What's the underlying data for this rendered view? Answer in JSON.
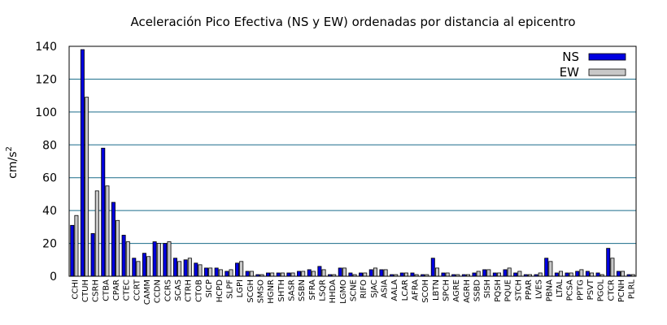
{
  "chart_data": {
    "type": "bar",
    "title": "Aceleración Pico Efectiva (NS y EW) ordenadas por distancia al epicentro",
    "xlabel": "",
    "ylabel": "cm/s",
    "ylabel_superscript": "2",
    "ylim": [
      0,
      140
    ],
    "yticks": [
      0,
      20,
      40,
      60,
      80,
      100,
      120,
      140
    ],
    "grid": true,
    "legend_position": "top-right",
    "categories": [
      "CCHI",
      "CTUH",
      "CSRH",
      "CTBA",
      "CPAR",
      "CTEC",
      "CCRT",
      "CAMM",
      "CCDN",
      "CCRS",
      "SCAS",
      "CTRH",
      "CTOB",
      "SICP",
      "HCPD",
      "SLPF",
      "LGPI",
      "SCGH",
      "SMSO",
      "HGNR",
      "SHTH",
      "SASR",
      "SSBN",
      "SFRA",
      "LSQR",
      "HHDA",
      "LGMO",
      "SCNE",
      "RIFO",
      "SJAC",
      "ASIA",
      "AALA",
      "LCAR",
      "AFRA",
      "SCOH",
      "LBTN",
      "SPCH",
      "AGRE",
      "AGRH",
      "SSBD",
      "SISH",
      "PQSH",
      "PQUE",
      "STCH",
      "PPAR",
      "LVES",
      "PBNA",
      "LTAL",
      "PCSA",
      "PPTG",
      "PSVT",
      "PGOL",
      "CTCR",
      "PCNH",
      "PLRL"
    ],
    "series": [
      {
        "name": "NS",
        "color": "#0000e0",
        "values": [
          31,
          138,
          26,
          78,
          45,
          25,
          11,
          14,
          21,
          20,
          11,
          10,
          8,
          5,
          5,
          3,
          8,
          3,
          1,
          2,
          2,
          2,
          3,
          4,
          6,
          1,
          5,
          2,
          2,
          4,
          4,
          1,
          2,
          2,
          1,
          11,
          2,
          1,
          1,
          2,
          4,
          2,
          4,
          2,
          1,
          1,
          11,
          2,
          2,
          3,
          3,
          2,
          17,
          3,
          1
        ]
      },
      {
        "name": "EW",
        "color": "#c8c8c8",
        "values": [
          37,
          109,
          52,
          55,
          34,
          21,
          9,
          12,
          20,
          21,
          9,
          11,
          7,
          5,
          4,
          4,
          9,
          3,
          1,
          2,
          2,
          2,
          3,
          3,
          4,
          1,
          5,
          1,
          2,
          5,
          4,
          1,
          2,
          1,
          1,
          5,
          2,
          1,
          1,
          3,
          4,
          2,
          5,
          3,
          1,
          2,
          9,
          3,
          2,
          4,
          2,
          1,
          11,
          3,
          1
        ]
      }
    ]
  }
}
